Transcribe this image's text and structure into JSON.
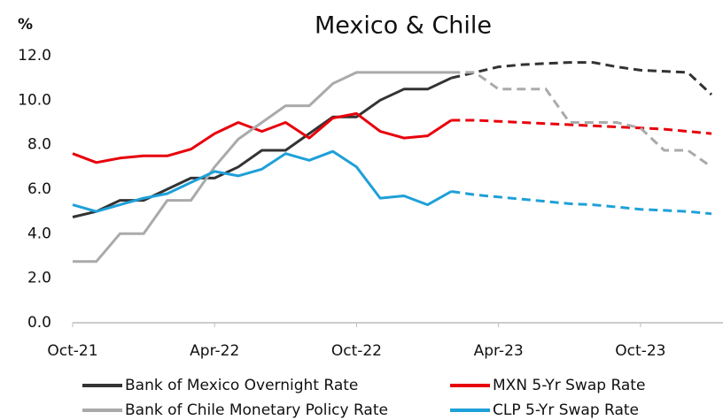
{
  "chart_data": {
    "type": "line",
    "title": "Mexico & Chile",
    "y_label": "%",
    "categories": [
      "Oct-21",
      null,
      null,
      null,
      null,
      null,
      "Apr-22",
      null,
      null,
      null,
      null,
      null,
      "Oct-22",
      null,
      null,
      null,
      null,
      null,
      "Apr-23",
      null,
      null,
      null,
      null,
      null,
      "Oct-23",
      null,
      null,
      null
    ],
    "series": [
      {
        "name": "Bank of Mexico Overnight Rate",
        "color": "#333333",
        "values": [
          4.75,
          5.0,
          5.5,
          5.5,
          6.0,
          6.5,
          6.5,
          7.0,
          7.75,
          7.75,
          8.5,
          9.25,
          9.25,
          10.0,
          10.5,
          10.5,
          11.0,
          null,
          null,
          null,
          null,
          null,
          null,
          null,
          null,
          null,
          null,
          null
        ],
        "forecast": [
          null,
          null,
          null,
          null,
          null,
          null,
          null,
          null,
          null,
          null,
          null,
          null,
          null,
          null,
          null,
          null,
          11.0,
          11.25,
          11.5,
          11.6,
          11.65,
          11.7,
          11.7,
          11.5,
          11.35,
          11.3,
          11.25,
          10.25
        ]
      },
      {
        "name": "MXN 5-Yr Swap Rate",
        "color": "#e8000b",
        "values": [
          7.6,
          7.2,
          7.4,
          7.5,
          7.5,
          7.8,
          8.5,
          9.0,
          8.6,
          9.0,
          8.3,
          9.2,
          9.4,
          8.6,
          8.3,
          8.4,
          9.1,
          null,
          null,
          null,
          null,
          null,
          null,
          null,
          null,
          null,
          null,
          null
        ],
        "forecast": [
          null,
          null,
          null,
          null,
          null,
          null,
          null,
          null,
          null,
          null,
          null,
          null,
          null,
          null,
          null,
          null,
          9.1,
          9.1,
          9.05,
          9.0,
          8.95,
          8.9,
          8.85,
          8.8,
          8.75,
          8.7,
          8.6,
          8.5
        ]
      },
      {
        "name": "Bank of Chile Monetary Policy Rate",
        "color": "#aaaaaa",
        "values": [
          2.75,
          2.75,
          4.0,
          4.0,
          5.5,
          5.5,
          7.0,
          8.25,
          9.0,
          9.75,
          9.75,
          10.75,
          11.25,
          11.25,
          11.25,
          11.25,
          11.25,
          null,
          null,
          null,
          null,
          null,
          null,
          null,
          null,
          null,
          null,
          null
        ],
        "forecast": [
          null,
          null,
          null,
          null,
          null,
          null,
          null,
          null,
          null,
          null,
          null,
          null,
          null,
          null,
          null,
          null,
          11.25,
          11.25,
          10.5,
          10.5,
          10.5,
          9.0,
          9.0,
          9.0,
          8.75,
          7.75,
          7.75,
          7.0
        ]
      },
      {
        "name": "CLP 5-Yr Swap Rate",
        "color": "#1ea0d8",
        "values": [
          5.3,
          5.0,
          5.3,
          5.6,
          5.8,
          6.3,
          6.8,
          6.6,
          6.9,
          7.6,
          7.3,
          7.7,
          7.0,
          5.6,
          5.7,
          5.3,
          5.9,
          null,
          null,
          null,
          null,
          null,
          null,
          null,
          null,
          null,
          null,
          null
        ],
        "forecast": [
          null,
          null,
          null,
          null,
          null,
          null,
          null,
          null,
          null,
          null,
          null,
          null,
          null,
          null,
          null,
          null,
          5.9,
          5.75,
          5.65,
          5.55,
          5.45,
          5.35,
          5.3,
          5.2,
          5.1,
          5.05,
          5.0,
          4.9
        ]
      }
    ],
    "ylim": [
      0,
      12
    ],
    "yticks": [
      {
        "value": 0,
        "label": "0.0"
      },
      {
        "value": 2,
        "label": "2.0"
      },
      {
        "value": 4,
        "label": "4.0"
      },
      {
        "value": 6,
        "label": "6.0"
      },
      {
        "value": 8,
        "label": "8.0"
      },
      {
        "value": 10,
        "label": "10.0"
      },
      {
        "value": 12,
        "label": "12.0"
      }
    ],
    "grid": false
  }
}
